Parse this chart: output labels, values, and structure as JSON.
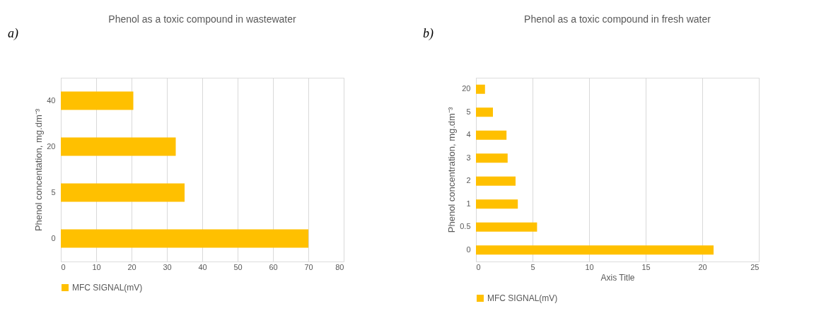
{
  "chart_data": [
    {
      "type": "bar",
      "orientation": "horizontal",
      "title": "Phenol as a toxic compound in wastewater",
      "ylabel": "Phenol concentation, mg.dm⁻³",
      "annotations": [
        "a)"
      ],
      "categories": [
        "40",
        "20",
        "5",
        "0"
      ],
      "series": [
        {
          "name": "MFC SIGNAL(mV)",
          "color": "#ffc000",
          "values": [
            20.5,
            32.5,
            35,
            70
          ]
        }
      ],
      "xlim": [
        0,
        80
      ],
      "xticks": [
        0,
        10,
        20,
        30,
        40,
        50,
        60,
        70,
        80
      ],
      "grid": "x",
      "legend": "bottom"
    },
    {
      "type": "bar",
      "orientation": "horizontal",
      "title": "Phenol as a toxic compound in fresh water",
      "xlabel": "Axis Title",
      "ylabel": "Phenol concentration, mg.dm⁻³",
      "annotations": [
        "b)"
      ],
      "categories": [
        "20",
        "5",
        "4",
        "3",
        "2",
        "1",
        "0.5",
        "0"
      ],
      "series": [
        {
          "name": "MFC SIGNAL(mV)",
          "color": "#ffc000",
          "values": [
            0.8,
            1.5,
            2.7,
            2.8,
            3.5,
            3.7,
            5.4,
            21
          ]
        }
      ],
      "xlim": [
        0,
        25
      ],
      "xticks": [
        0,
        5,
        10,
        15,
        20,
        25
      ],
      "grid": "x",
      "legend": "bottom"
    }
  ]
}
